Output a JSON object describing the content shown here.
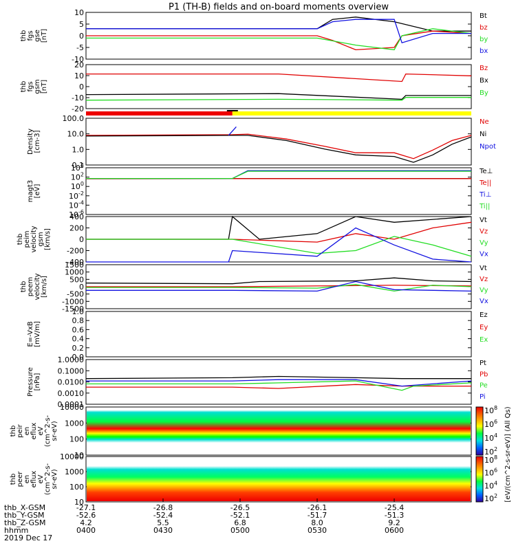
{
  "title": "P1 (TH-B) fields and on-board moments overview",
  "colors": {
    "black": "#000000",
    "red": "#e00000",
    "green": "#22dd22",
    "blue": "#1010e0",
    "yellow": "#ffff00",
    "bar_red": "#ee0000"
  },
  "chart_data": [
    {
      "id": "fgs_gse",
      "type": "line",
      "ylabel": [
        "thb",
        "fgs",
        "gse",
        "[nT]"
      ],
      "ylim": [
        -10,
        10
      ],
      "yticks": [
        "10",
        "5",
        "0",
        "-5",
        "-10"
      ],
      "legend": [
        "Bt",
        "bz",
        "by",
        "bx"
      ],
      "series": [
        {
          "name": "Bt",
          "color": "black",
          "x": [
            0,
            0.4,
            0.6,
            0.64,
            0.7,
            0.8,
            0.9,
            1.0
          ],
          "y": [
            3,
            3,
            3,
            7,
            8,
            6,
            2,
            2
          ]
        },
        {
          "name": "bz",
          "color": "red",
          "x": [
            0,
            0.6,
            0.64,
            0.7,
            0.8,
            0.82,
            0.9,
            1.0
          ],
          "y": [
            0,
            0,
            -2,
            -6,
            -5,
            0,
            2,
            1
          ]
        },
        {
          "name": "by",
          "color": "green",
          "x": [
            0,
            0.6,
            0.7,
            0.8,
            0.82,
            0.9,
            1.0
          ],
          "y": [
            -1,
            -1,
            -4,
            -6,
            0,
            3,
            1
          ]
        },
        {
          "name": "bx",
          "color": "blue",
          "x": [
            0,
            0.6,
            0.64,
            0.7,
            0.8,
            0.82,
            0.9,
            1.0
          ],
          "y": [
            3,
            3,
            6,
            7,
            7,
            -3,
            1,
            1
          ]
        }
      ]
    },
    {
      "id": "fgs_gsm",
      "type": "line",
      "ylabel": [
        "thb",
        "fgs",
        "gsm",
        "[nT]"
      ],
      "ylim": [
        -25,
        22
      ],
      "yticks": [
        "20",
        "10",
        "0",
        "-10",
        "-20"
      ],
      "legend": [
        "Bz",
        "Bx",
        "By"
      ],
      "series": [
        {
          "name": "Bz",
          "color": "red",
          "x": [
            0,
            0.5,
            0.82,
            0.83,
            1.0
          ],
          "y": [
            12,
            12,
            4,
            12,
            10
          ]
        },
        {
          "name": "Bx",
          "color": "black",
          "x": [
            0,
            0.5,
            0.82,
            0.83,
            1.0
          ],
          "y": [
            -10,
            -9,
            -15,
            -11,
            -11
          ]
        },
        {
          "name": "By",
          "color": "green",
          "x": [
            0,
            0.5,
            0.82,
            0.83,
            1.0
          ],
          "y": [
            -16,
            -15,
            -16,
            -13,
            -13
          ]
        }
      ]
    },
    {
      "id": "bar",
      "type": "bar",
      "segments": [
        {
          "from": 0,
          "to": 0.38,
          "color": "bar_red"
        },
        {
          "from": 0.38,
          "to": 1.0,
          "color": "yellow"
        }
      ]
    },
    {
      "id": "density",
      "type": "line",
      "log": true,
      "ylabel": [
        "Density",
        "[cm-3]"
      ],
      "ylim": [
        0.03,
        200
      ],
      "yticks": [
        "100.0",
        "10.0",
        "1.0",
        "0.1"
      ],
      "legend": [
        "Ne",
        "Ni",
        "Npot"
      ],
      "series": [
        {
          "name": "Ne",
          "color": "red",
          "x": [
            0,
            0.38,
            0.42,
            0.52,
            0.62,
            0.7,
            0.8,
            0.85,
            0.9,
            0.95,
            1.0
          ],
          "y": [
            8,
            9,
            10,
            4,
            1,
            0.3,
            0.3,
            0.1,
            0.5,
            3,
            8
          ]
        },
        {
          "name": "Ni",
          "color": "black",
          "x": [
            0,
            0.38,
            0.42,
            0.52,
            0.62,
            0.7,
            0.8,
            0.85,
            0.9,
            0.95,
            1.0
          ],
          "y": [
            7,
            8,
            8,
            3,
            0.6,
            0.2,
            0.15,
            0.05,
            0.2,
            1.5,
            6
          ]
        },
        {
          "name": "Npot",
          "color": "blue",
          "x": [
            0.37,
            0.39
          ],
          "y": [
            8,
            40
          ]
        }
      ]
    },
    {
      "id": "temp",
      "type": "line",
      "log": true,
      "ylabel": [
        "magt3",
        "[eV]"
      ],
      "ylim": [
        1e-07,
        10000
      ],
      "yticks": [
        "10^4",
        "10^2",
        "10^0",
        "10^-2",
        "10^-4",
        "10^-6"
      ],
      "legend": [
        "Te⊥",
        "Te||",
        "Ti⊥",
        "Ti||"
      ],
      "series": [
        {
          "name": "Te⊥",
          "color": "black",
          "x": [
            0,
            0.38,
            1.0
          ],
          "y": [
            30,
            30,
            30
          ]
        },
        {
          "name": "Te||",
          "color": "red",
          "x": [
            0,
            0.38,
            1.0
          ],
          "y": [
            25,
            28,
            28
          ]
        },
        {
          "name": "Ti⊥",
          "color": "blue",
          "x": [
            0,
            0.38,
            0.42,
            1.0
          ],
          "y": [
            30,
            30,
            2000,
            2000
          ]
        },
        {
          "name": "Ti||",
          "color": "green",
          "x": [
            0,
            0.38,
            0.42,
            1.0
          ],
          "y": [
            30,
            30,
            1500,
            1500
          ]
        }
      ]
    },
    {
      "id": "peim_velocity",
      "type": "line",
      "ylabel": [
        "thb",
        "peim",
        "velocity",
        "gsm",
        "[km/s]"
      ],
      "ylim": [
        -400,
        400
      ],
      "yticks": [
        "400",
        "200",
        "0",
        "-200",
        "-400"
      ],
      "legend": [
        "Vt",
        "Vz",
        "Vy",
        "Vx"
      ],
      "series": [
        {
          "name": "Vt",
          "color": "black",
          "x": [
            0,
            0.37,
            0.38,
            0.45,
            0.6,
            0.7,
            0.8,
            1.0
          ],
          "y": [
            0,
            0,
            400,
            0,
            100,
            400,
            300,
            400
          ]
        },
        {
          "name": "Vz",
          "color": "red",
          "x": [
            0,
            0.38,
            0.6,
            0.7,
            0.8,
            0.9,
            1.0
          ],
          "y": [
            0,
            0,
            -50,
            100,
            0,
            200,
            300
          ]
        },
        {
          "name": "Vy",
          "color": "green",
          "x": [
            0,
            0.38,
            0.6,
            0.7,
            0.8,
            0.9,
            1.0
          ],
          "y": [
            0,
            0,
            -250,
            -200,
            50,
            -100,
            -300
          ]
        },
        {
          "name": "Vx",
          "color": "blue",
          "x": [
            0,
            0.37,
            0.38,
            0.6,
            0.7,
            0.8,
            0.9,
            1.0
          ],
          "y": [
            -400,
            -400,
            -200,
            -300,
            200,
            -100,
            -350,
            -400
          ]
        }
      ]
    },
    {
      "id": "peem_velocity",
      "type": "line",
      "ylabel": [
        "thb",
        "peem",
        "velocity",
        "[km/s]"
      ],
      "ylim": [
        -1500,
        1500
      ],
      "yticks": [
        "1500",
        "1000",
        "500",
        "0",
        "-500",
        "-1000",
        "-1500"
      ],
      "legend": [
        "Vt",
        "Vz",
        "Vy",
        "Vx"
      ],
      "series": [
        {
          "name": "Vt",
          "color": "black",
          "x": [
            0,
            0.38,
            0.45,
            0.7,
            0.8,
            0.9,
            1.0
          ],
          "y": [
            250,
            200,
            350,
            400,
            600,
            400,
            350
          ]
        },
        {
          "name": "Vz",
          "color": "red",
          "x": [
            0,
            0.38,
            0.6,
            0.8,
            1.0
          ],
          "y": [
            0,
            0,
            50,
            100,
            50
          ]
        },
        {
          "name": "Vy",
          "color": "green",
          "x": [
            0,
            0.38,
            0.6,
            0.7,
            0.8,
            0.9,
            1.0
          ],
          "y": [
            -50,
            -50,
            -100,
            150,
            -300,
            100,
            0
          ]
        },
        {
          "name": "Vx",
          "color": "blue",
          "x": [
            0,
            0.38,
            0.6,
            0.7,
            0.8,
            0.9,
            1.0
          ],
          "y": [
            -250,
            -250,
            -300,
            350,
            -200,
            -250,
            -300
          ]
        }
      ]
    },
    {
      "id": "efield",
      "type": "line",
      "ylabel": [
        "E=-VxB",
        "[mV/m]"
      ],
      "ylim": [
        0,
        1
      ],
      "yticks": [
        "1.0",
        "0.8",
        "0.6",
        "0.4",
        "0.2",
        "0.0"
      ],
      "legend": [
        "Ez",
        "Ey",
        "Ex"
      ],
      "series": []
    },
    {
      "id": "pressure",
      "type": "line",
      "log": true,
      "ylabel": [
        "Pressure",
        "[nPa]"
      ],
      "ylim": [
        0.0001,
        1.5
      ],
      "yticks": [
        "1.0000",
        "0.1000",
        "0.0100",
        "0.0010",
        "0.0001"
      ],
      "legend": [
        "Pt",
        "Pb",
        "Pe",
        "Pi"
      ],
      "series": [
        {
          "name": "Pt",
          "color": "black",
          "x": [
            0,
            0.38,
            0.5,
            0.7,
            0.82,
            1.0
          ],
          "y": [
            0.025,
            0.03,
            0.04,
            0.03,
            0.025,
            0.025
          ]
        },
        {
          "name": "Pb",
          "color": "red",
          "x": [
            0,
            0.38,
            0.5,
            0.7,
            0.82,
            1.0
          ],
          "y": [
            0.004,
            0.004,
            0.003,
            0.007,
            0.005,
            0.005
          ]
        },
        {
          "name": "Pe",
          "color": "green",
          "x": [
            0,
            0.38,
            0.5,
            0.7,
            0.82,
            0.85,
            1.0
          ],
          "y": [
            0.008,
            0.008,
            0.01,
            0.015,
            0.002,
            0.005,
            0.01
          ]
        },
        {
          "name": "Pi",
          "color": "blue",
          "x": [
            0,
            0.38,
            0.5,
            0.7,
            0.82,
            1.0
          ],
          "y": [
            0.015,
            0.015,
            0.02,
            0.02,
            0.005,
            0.015
          ]
        }
      ]
    },
    {
      "id": "peir_spectrogram",
      "type": "heatmap",
      "ylabel": [
        "thb",
        "peir",
        "en",
        "eflux",
        "eV",
        "(cm^2-s-",
        "sr-eV)"
      ],
      "yticks": [
        "10000",
        "1000",
        "100",
        "10"
      ],
      "colorbar_label": "[eV/(cm^2-s-sr-eV)] (All Qs)",
      "colorbar_ticks": [
        "10^8",
        "10^6",
        "10^4",
        "10^2"
      ]
    },
    {
      "id": "peer_spectrogram",
      "type": "heatmap",
      "ylabel": [
        "thb",
        "peer",
        "en",
        "eflux",
        "eV",
        "(cm^2-s-",
        "sr-eV)"
      ],
      "yticks": [
        "10000",
        "1000",
        "100",
        "10"
      ],
      "colorbar_label": "[eV/(cm^2-s-sr-eV)] (All Qs)",
      "colorbar_ticks": [
        "10^8",
        "10^6",
        "10^4",
        "10^2"
      ]
    }
  ],
  "xaxis": {
    "row_labels": [
      "thb_X-GSM",
      "thb_Y-GSM",
      "thb_Z-GSM",
      "hhmm",
      "2019 Dec 17"
    ],
    "columns": [
      {
        "pos": 0.0,
        "vals": [
          "-27.1",
          "-52.6",
          "4.2",
          "0400"
        ]
      },
      {
        "pos": 0.2,
        "vals": [
          "-26.8",
          "-52.4",
          "5.5",
          "0430"
        ]
      },
      {
        "pos": 0.4,
        "vals": [
          "-26.5",
          "-52.1",
          "6.8",
          "0500"
        ]
      },
      {
        "pos": 0.6,
        "vals": [
          "-26.1",
          "-51.7",
          "8.0",
          "0530"
        ]
      },
      {
        "pos": 0.8,
        "vals": [
          "-25.4",
          "-51.3",
          "9.2",
          "0600"
        ]
      }
    ]
  }
}
